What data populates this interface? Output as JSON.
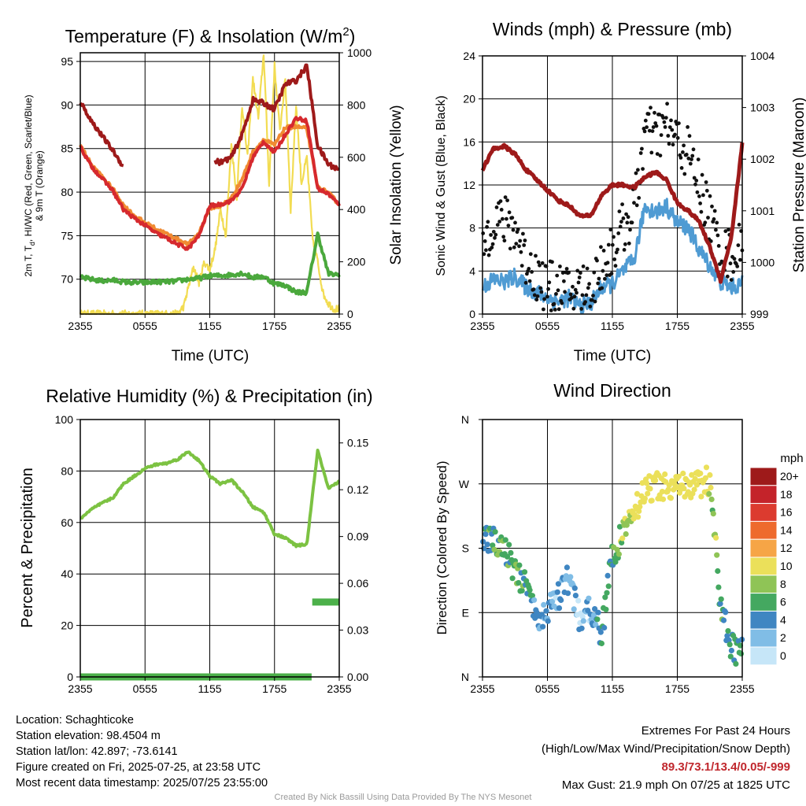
{
  "colors": {
    "maroon": "#9e1a1a",
    "red": "#d6292e",
    "orange": "#f08a32",
    "green": "#4aa83c",
    "yellow": "#f2dc52",
    "blue": "#4f9bd3",
    "black": "#111111",
    "rh_green": "#7cc242",
    "precip_green": "#4cb04a"
  },
  "x_ticks": [
    "2355",
    "0555",
    "1155",
    "1755",
    "2355"
  ],
  "x_ticks_hours": [
    0,
    6,
    12,
    18,
    24
  ],
  "charts": {
    "temp": {
      "title": "Temperature (F) & Insolation (W/m",
      "title_sup": "2",
      "title_end": ")",
      "ylabel_line1": "2m T, T",
      "ylabel_sub": "d",
      "ylabel_line1_end": ", HI/WC (Red, Green, Scarlet/Blue)",
      "ylabel_line2": "& 9m T (Orange)",
      "y2label": "Solar Insolation (Yellow)",
      "xlabel": "Time (UTC)",
      "yticks": [
        "70",
        "75",
        "80",
        "85",
        "90",
        "95"
      ],
      "y2ticks": [
        "0",
        "200",
        "400",
        "600",
        "800",
        "1000"
      ]
    },
    "wind": {
      "title": "Winds (mph) & Pressure (mb)",
      "ylabel": "Sonic Wind & Gust (Blue, Black)",
      "y2label": "Station Pressure (Maroon)",
      "xlabel": "Time (UTC)",
      "yticks": [
        "0",
        "4",
        "8",
        "12",
        "16",
        "20",
        "24"
      ],
      "y2ticks": [
        "999",
        "1000",
        "1001",
        "1002",
        "1003",
        "1004"
      ]
    },
    "rh": {
      "title": "Relative Humidity (%) & Precipitation (in)",
      "ylabel": "Percent & Precipitation",
      "yticks": [
        "0",
        "20",
        "40",
        "60",
        "80",
        "100"
      ],
      "y2ticks": [
        "0.00",
        "0.03",
        "0.06",
        "0.09",
        "0.12",
        "0.15"
      ]
    },
    "dir": {
      "title": "Wind Direction",
      "ylabel": "Direction (Colored By Speed)",
      "yticks": [
        "N",
        "E",
        "S",
        "W",
        "N"
      ],
      "legend_title": "mph",
      "legend_labels": [
        "20+",
        "18",
        "16",
        "14",
        "12",
        "10",
        "8",
        "6",
        "4",
        "2",
        "0"
      ],
      "legend_colors": [
        "#9e1a1a",
        "#c4232a",
        "#dc3b2f",
        "#ee6a2d",
        "#f6a546",
        "#ebe05a",
        "#8fc456",
        "#44a860",
        "#3f86c2",
        "#80bde6",
        "#c6e6f8"
      ]
    }
  },
  "chart_data": [
    {
      "type": "line",
      "title": "Temperature (F) & Insolation (W/m2)",
      "xlabel": "Time (UTC)",
      "ylabel": "2m T, Td, HI/WC (Red, Green, Scarlet/Blue) & 9m T (Orange)",
      "y2label": "Solar Insolation (Yellow)",
      "ylim": [
        66,
        96
      ],
      "y2lim": [
        0,
        1000
      ],
      "x_unit": "hours since 2355",
      "series": [
        {
          "name": "2m T",
          "axis": "y",
          "x": [
            0,
            1,
            2,
            3,
            4,
            5,
            6,
            7,
            8,
            9,
            10,
            11,
            12,
            13,
            14,
            15,
            16,
            17,
            18,
            19,
            20,
            21,
            22,
            23,
            24
          ],
          "values": [
            85.2,
            83,
            81.6,
            80.2,
            78,
            77,
            76.2,
            75.3,
            74.7,
            74,
            73.5,
            75,
            78.4,
            78.6,
            79,
            80.4,
            84,
            85.8,
            84.5,
            86.6,
            88.5,
            88.2,
            80.4,
            79.8,
            78.5
          ]
        },
        {
          "name": "9m T",
          "axis": "y",
          "x": [
            0,
            1,
            2,
            3,
            4,
            5,
            6,
            7,
            8,
            9,
            10,
            11,
            12,
            13,
            14,
            15,
            16,
            17,
            18,
            19,
            20,
            21,
            22,
            23,
            24
          ],
          "values": [
            85.4,
            83.2,
            81.8,
            80.4,
            78.5,
            77.3,
            76.5,
            75.8,
            75.2,
            74.6,
            74,
            75.3,
            78.2,
            78.4,
            79.3,
            81.5,
            84.6,
            86,
            85.4,
            87.4,
            87.5,
            87.3,
            80.6,
            79.9,
            78.6
          ]
        },
        {
          "name": "HI/WC",
          "axis": "y",
          "x": [
            0,
            1,
            2,
            3,
            4,
            12.5,
            13,
            14,
            15,
            16,
            17,
            18,
            19,
            20,
            21,
            22,
            23,
            24
          ],
          "values": [
            90.4,
            88.2,
            86.5,
            84.8,
            82.9,
            83.6,
            83.4,
            84,
            86.6,
            90.6,
            90.2,
            89.5,
            92.4,
            92.8,
            94.5,
            85.3,
            83.2,
            82.6
          ]
        },
        {
          "name": "Td",
          "axis": "y",
          "x": [
            0,
            1,
            2,
            3,
            4,
            5,
            6,
            7,
            8,
            9,
            10,
            11,
            12,
            13,
            14,
            15,
            16,
            17,
            18,
            19,
            20,
            21,
            22,
            23,
            24
          ],
          "values": [
            70.2,
            70,
            69.8,
            69.9,
            69.7,
            69.6,
            69.6,
            69.7,
            69.7,
            69.8,
            70,
            70.1,
            70.4,
            70.4,
            70.5,
            70.7,
            70.2,
            70.3,
            69.5,
            69.3,
            68.5,
            68.5,
            75.2,
            70.6,
            70.5
          ]
        },
        {
          "name": "Solar Insolation",
          "axis": "y2",
          "x": [
            0,
            1,
            2,
            3,
            4,
            5,
            6,
            7,
            8,
            9,
            9.6,
            10,
            10.5,
            11,
            11.5,
            12,
            12.5,
            13,
            13.5,
            14,
            14.5,
            15,
            15.5,
            16,
            16.5,
            17,
            17.5,
            18,
            18.5,
            19,
            19.5,
            20,
            20.5,
            21,
            21.5,
            22,
            22.5,
            23,
            23.5,
            24
          ],
          "values": [
            0,
            0,
            0,
            0,
            0,
            0,
            0,
            0,
            0,
            0,
            30,
            100,
            180,
            120,
            200,
            170,
            250,
            400,
            300,
            650,
            450,
            800,
            600,
            900,
            750,
            1000,
            500,
            950,
            700,
            900,
            400,
            800,
            500,
            600,
            300,
            200,
            80,
            40,
            20,
            20
          ]
        }
      ]
    },
    {
      "type": "line",
      "title": "Winds (mph) & Pressure (mb)",
      "xlabel": "Time (UTC)",
      "ylabel": "Sonic Wind & Gust (Blue, Black)",
      "y2label": "Station Pressure (Maroon)",
      "ylim": [
        0,
        24
      ],
      "y2lim": [
        999,
        1004
      ],
      "x_unit": "hours since 2355",
      "series": [
        {
          "name": "Sonic Wind",
          "axis": "y",
          "x": [
            0,
            1,
            2,
            3,
            4,
            5,
            6,
            7,
            8,
            9,
            10,
            11,
            12,
            13,
            14,
            15,
            16,
            17,
            18,
            19,
            20,
            21,
            22,
            23,
            24
          ],
          "values": [
            2.5,
            3.2,
            3,
            3.5,
            2.5,
            2,
            1.5,
            1.2,
            1.5,
            0.8,
            1,
            2.5,
            2.8,
            4,
            5,
            10,
            9.5,
            10,
            8.5,
            8,
            6,
            4.5,
            3,
            2.5,
            2.8
          ]
        },
        {
          "name": "Gust",
          "axis": "y",
          "x": [
            0,
            1,
            2,
            3,
            4,
            5,
            6,
            7,
            8,
            9,
            10,
            11,
            12,
            13,
            14,
            15,
            16,
            17,
            18,
            19,
            20,
            21,
            22,
            23,
            24
          ],
          "values": [
            6,
            9,
            8.5,
            8,
            5,
            3.5,
            2.5,
            2.2,
            2,
            2.5,
            2.2,
            4.5,
            6,
            8,
            9.5,
            17,
            16.5,
            17.5,
            16,
            15,
            12,
            9,
            6,
            5.5,
            6
          ]
        },
        {
          "name": "Station Pressure",
          "axis": "y2",
          "x": [
            0,
            1,
            2,
            3,
            4,
            5,
            6,
            7,
            8,
            9,
            10,
            11,
            12,
            13,
            14,
            15,
            16,
            17,
            18,
            19,
            20,
            21,
            22,
            23,
            24
          ],
          "values": [
            1001.8,
            1002.2,
            1002.25,
            1002.1,
            1001.8,
            1001.6,
            1001.4,
            1001.2,
            1001.1,
            1000.9,
            1000.9,
            1001.3,
            1001.5,
            1001.5,
            1001.45,
            1001.65,
            1001.75,
            1001.6,
            1001.15,
            1001,
            1000.8,
            1000.3,
            999.65,
            1000.5,
            1002.3
          ]
        }
      ]
    },
    {
      "type": "line",
      "title": "Relative Humidity (%) & Precipitation (in)",
      "ylabel": "Percent & Precipitation",
      "ylim": [
        0,
        100
      ],
      "y2lim": [
        0,
        0.165
      ],
      "x_unit": "hours since 2355",
      "series": [
        {
          "name": "Relative Humidity",
          "axis": "y",
          "x": [
            0,
            1,
            2,
            3,
            4,
            5,
            6,
            7,
            8,
            9,
            10,
            11,
            12,
            13,
            14,
            15,
            16,
            17,
            18,
            19,
            20,
            21,
            22,
            23,
            24
          ],
          "values": [
            61.5,
            65,
            67.5,
            69.5,
            75,
            78,
            81,
            82.5,
            83,
            84.5,
            87.5,
            84,
            78,
            75,
            76.5,
            72,
            66,
            64,
            55.5,
            54,
            51,
            51.5,
            88,
            73,
            76
          ]
        },
        {
          "name": "Precipitation",
          "axis": "y2",
          "x": [
            0,
            21.5,
            22,
            24
          ],
          "values": [
            0,
            0,
            0.048,
            0.048
          ]
        }
      ]
    },
    {
      "type": "scatter",
      "title": "Wind Direction",
      "ylabel": "Direction (Colored By Speed)",
      "yticks": [
        "N",
        "E",
        "S",
        "W",
        "N"
      ],
      "ylim": [
        0,
        360
      ],
      "x_unit": "hours since 2355",
      "series": [
        {
          "name": "direction",
          "x": [
            0,
            1,
            2,
            3,
            4,
            5,
            6,
            7,
            8,
            9,
            10,
            11,
            12,
            13,
            14,
            15,
            16,
            17,
            18,
            19,
            20,
            21,
            22,
            23,
            24
          ],
          "values": [
            196,
            190,
            180,
            150,
            125,
            80,
            95,
            110,
            140,
            80,
            100,
            60,
            170,
            200,
            230,
            265,
            265,
            270,
            265,
            265,
            270,
            275,
            100,
            40,
            35
          ]
        }
      ]
    }
  ],
  "info": {
    "location": "Location: Schaghticoke",
    "elevation": "Station elevation: 98.4504 m",
    "latlon": "Station lat/lon: 42.897; -73.6141",
    "created": "Figure created on Fri, 2025-07-25, at 23:58 UTC",
    "recent": "Most recent data timestamp: 2025/07/25 23:55:00"
  },
  "extremes": {
    "title": "Extremes For Past 24 Hours",
    "subtitle": "(High/Low/Max Wind/Precipitation/Snow Depth)",
    "values": "89.3/73.1/13.4/0.05/-999",
    "gust": "Max Gust: 21.9 mph On 07/25 at 1825 UTC"
  },
  "credit": "Created By Nick Bassill Using Data Provided By The NYS Mesonet"
}
